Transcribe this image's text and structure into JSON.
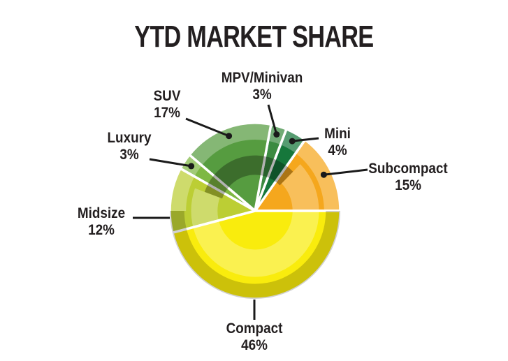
{
  "title": "YTD MARKET SHARE",
  "chart_data": {
    "type": "pie",
    "title": "YTD MARKET SHARE",
    "unit": "percent",
    "total": 100,
    "direction": "counterclockwise",
    "start_angle_deg": 0,
    "legend_position": "callout-labels",
    "background": "#FFFFFF",
    "label_color": "#231F20",
    "leader_line_color": "#1A1A1A",
    "slices": [
      {
        "label": "Subcompact",
        "value": 15,
        "pct_label": "15%",
        "color": "#F5A71D"
      },
      {
        "label": "Mini",
        "value": 4,
        "pct_label": "4%",
        "color": "#16773B"
      },
      {
        "label": "MPV/Minivan",
        "value": 3,
        "pct_label": "3%",
        "color": "#3B8B41"
      },
      {
        "label": "SUV",
        "value": 17,
        "pct_label": "17%",
        "color": "#569C40"
      },
      {
        "label": "Luxury",
        "value": 3,
        "pct_label": "3%",
        "color": "#7EB843"
      },
      {
        "label": "Midsize",
        "value": 12,
        "pct_label": "12%",
        "color": "#BCCE34"
      },
      {
        "label": "Compact",
        "value": 46,
        "pct_label": "46%",
        "color": "#F9EC0D"
      }
    ]
  }
}
